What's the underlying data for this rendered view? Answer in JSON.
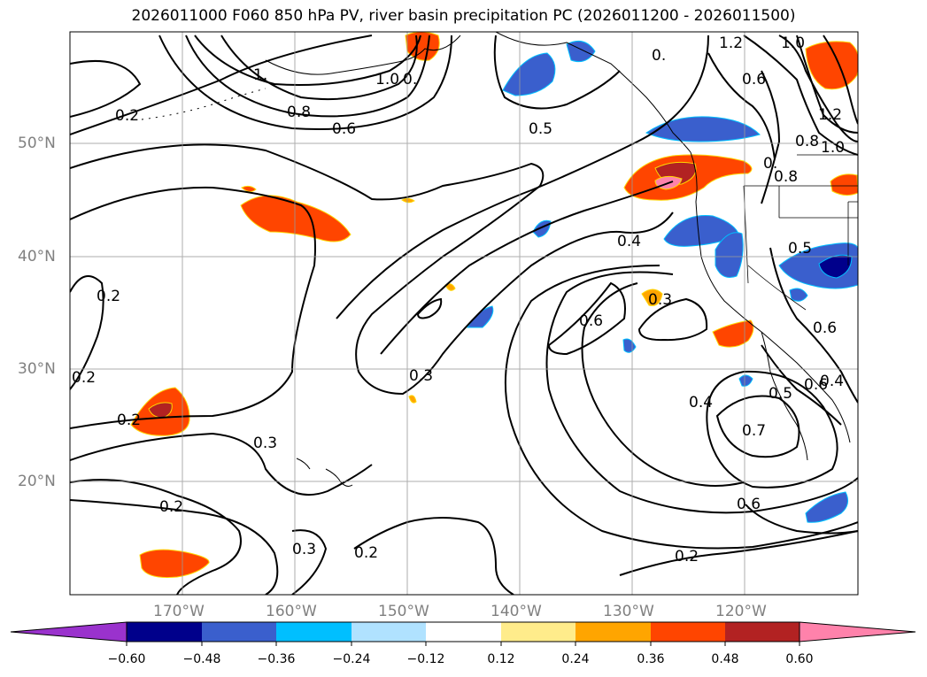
{
  "title": "2026011000 F060 850 hPa PV, river basin precipitation PC (2026011200 - 2026011500)",
  "lat_labels": [
    "50°N",
    "40°N",
    "30°N",
    "20°N"
  ],
  "lon_labels": [
    "170°W",
    "160°W",
    "150°W",
    "140°W",
    "130°W",
    "120°W"
  ],
  "contour_labels": [
    "1.2",
    "1.0",
    "1.",
    "1.0",
    "0.",
    "0.8",
    "0.6",
    "0.5",
    "0.",
    "0.6",
    "1.2",
    "1.0",
    "0.8",
    "0.",
    "0.8",
    "0.2",
    "0.4",
    "0.5",
    "0.2",
    "0.2",
    "0.6",
    "0.3",
    "0.6",
    "0.3",
    "0.4",
    "0.5",
    "0.4",
    "0.6",
    "0.7",
    "0.2",
    "0.3",
    "0.2",
    "0.3",
    "0.2",
    "0.6",
    "0.2"
  ],
  "colorbar": {
    "colors": [
      "#9a32cd",
      "#00008b",
      "#3a5fcd",
      "#00bfff",
      "#b0e2ff",
      "#ffffff",
      "#ffec8b",
      "#ffa500",
      "#ff4500",
      "#b22222",
      "#ff82ab"
    ],
    "under_color": "#9a32cd",
    "over_color": "#ff82ab",
    "ticks": [
      "−0.60",
      "−0.48",
      "−0.36",
      "−0.24",
      "−0.12",
      "0.12",
      "0.24",
      "0.36",
      "0.48",
      "0.60"
    ]
  }
}
